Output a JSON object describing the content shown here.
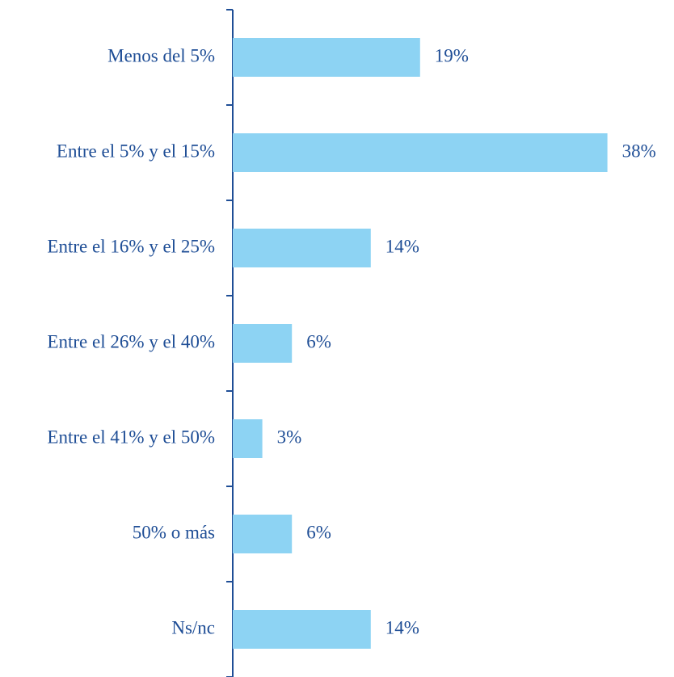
{
  "chart_data": {
    "type": "bar",
    "orientation": "horizontal",
    "categories": [
      "Menos del 5%",
      "Entre el 5% y el 15%",
      "Entre el 16% y el 25%",
      "Entre el 26% y el 40%",
      "Entre el 41% y el 50%",
      "50% o más",
      "Ns/nc"
    ],
    "values": [
      19,
      38,
      14,
      6,
      3,
      6,
      14
    ],
    "value_labels": [
      "19%",
      "38%",
      "14%",
      "6%",
      "3%",
      "6%",
      "14%"
    ],
    "color": "#8dd3f3"
  }
}
